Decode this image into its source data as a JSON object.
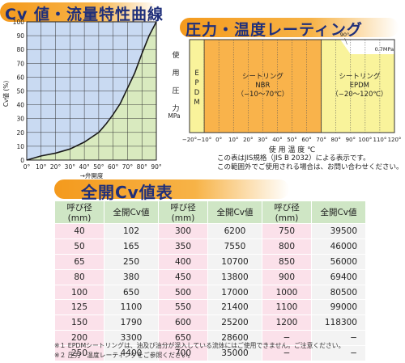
{
  "cv_section": {
    "title": "Cv 値・流量特性曲線",
    "ylabel": "Cv値 (%)",
    "xlabel": "→弁開度",
    "x_ticks": [
      "0°",
      "10°",
      "20°",
      "30°",
      "40°",
      "50°",
      "60°",
      "70°",
      "80°",
      "90°"
    ],
    "y_ticks": [
      "0",
      "10",
      "20",
      "30",
      "40",
      "50",
      "60",
      "70",
      "80",
      "90",
      "100"
    ],
    "colors": {
      "curve": "#1a1a1a",
      "fill_left": "#c9daf2",
      "fill_right": "#d9eabf",
      "grid": "#333333"
    }
  },
  "chart_data": [
    {
      "type": "line",
      "title": "Cv 値・流量特性曲線",
      "xlabel": "→弁開度",
      "ylabel": "Cv値 (%)",
      "x": [
        0,
        10,
        20,
        30,
        40,
        50,
        55,
        60,
        65,
        70,
        75,
        80,
        85,
        90
      ],
      "y": [
        0,
        3,
        5,
        8,
        13,
        20,
        26,
        33,
        41,
        52,
        63,
        77,
        90,
        100
      ],
      "xlim": [
        0,
        90
      ],
      "ylim": [
        0,
        100
      ],
      "grid": true
    },
    {
      "type": "area",
      "title": "圧力・温度レーティング",
      "xlabel": "使 用 温 度 ℃",
      "ylabel": "使用圧力 MPa",
      "x_ticks": [
        "−20°",
        "−10°",
        "0°",
        "10°",
        "20°",
        "30°",
        "40°",
        "50°",
        "60°",
        "70°",
        "80°",
        "90°",
        "100°",
        "110°",
        "120°"
      ],
      "series": [
        {
          "name": "EPDM",
          "x": [
            -20,
            -10
          ],
          "range_c": [
            -20,
            -10
          ],
          "label": "E P D M"
        },
        {
          "name": "シートリング NBR",
          "x": [
            -10,
            70
          ],
          "range_c": [
            -10,
            70
          ],
          "label_lines": [
            "シートリング",
            "NBR",
            "（−10〜70℃）"
          ]
        },
        {
          "name": "シートリング EPDM",
          "x": [
            70,
            120
          ],
          "range_c": [
            -20,
            120
          ],
          "label_lines": [
            "シートリング",
            "EPDM",
            "（−20〜120℃）"
          ]
        }
      ],
      "annotations": [
        "90°",
        "0.7MPa"
      ],
      "xlim": [
        -20,
        120
      ],
      "grid": true
    }
  ],
  "rating_section": {
    "title": "圧力・温度レーティング",
    "ylabel_chars": [
      "使",
      "用",
      "圧",
      "力"
    ],
    "yunit": "MPa",
    "note_lines": [
      "この表はJIS規格（JIS B 2032）による表示です。",
      "この範囲外でご使用される場合は、お問い合わせください。"
    ],
    "colors": {
      "nbr": "#f9b34b",
      "epdm": "#f9f39b",
      "epdm_strip": "#f9f39b",
      "grid": "#555555"
    }
  },
  "table_section": {
    "title": "全開Cv値表",
    "headers": [
      "呼び径(mm)",
      "全開Cv値",
      "呼び径(mm)",
      "全開Cv値",
      "呼び径(mm)",
      "全開Cv値"
    ],
    "rows": [
      [
        "40",
        "102",
        "300",
        "6200",
        "750",
        "39500"
      ],
      [
        "50",
        "165",
        "350",
        "7550",
        "800",
        "46000"
      ],
      [
        "65",
        "250",
        "400",
        "10700",
        "850",
        "56000"
      ],
      [
        "80",
        "380",
        "450",
        "13800",
        "900",
        "69400"
      ],
      [
        "100",
        "650",
        "500",
        "17000",
        "1000",
        "80500"
      ],
      [
        "125",
        "1100",
        "550",
        "21400",
        "1100",
        "99000"
      ],
      [
        "150",
        "1790",
        "600",
        "25200",
        "1200",
        "118300"
      ],
      [
        "200",
        "3300",
        "650",
        "28600",
        "−",
        "−"
      ],
      [
        "250",
        "4400",
        "700",
        "35000",
        "−",
        "−"
      ]
    ],
    "footnotes": [
      "※１ EPDMシートリングは、油及び油分が混入している流体にはご使用できません。ご注意ください。",
      "※２ 圧力・温度レーティングをご参照ください。"
    ]
  }
}
